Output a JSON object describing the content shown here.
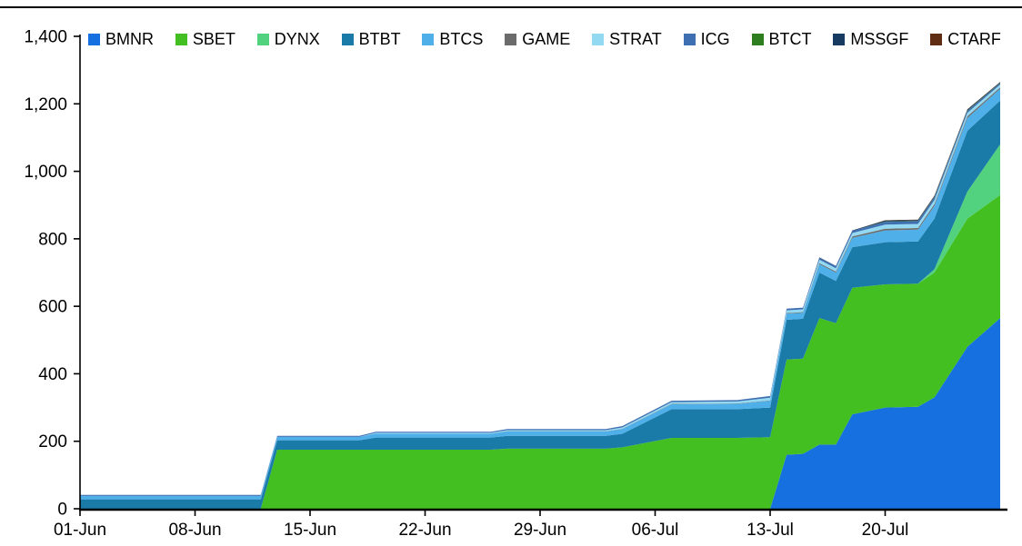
{
  "chart_data": {
    "type": "area",
    "stacked": true,
    "title": "",
    "grid": false,
    "legend_position": "top",
    "x_unit": "days since 01-Jun",
    "x_domain": [
      0,
      56
    ],
    "y_domain": [
      0,
      1400
    ],
    "x_ticks": [
      {
        "x": 0,
        "label": "01-Jun"
      },
      {
        "x": 7,
        "label": "08-Jun"
      },
      {
        "x": 14,
        "label": "15-Jun"
      },
      {
        "x": 21,
        "label": "22-Jun"
      },
      {
        "x": 28,
        "label": "29-Jun"
      },
      {
        "x": 35,
        "label": "06-Jul"
      },
      {
        "x": 42,
        "label": "13-Jul"
      },
      {
        "x": 49,
        "label": "20-Jul"
      }
    ],
    "y_ticks": [
      {
        "v": 0,
        "label": "0"
      },
      {
        "v": 200,
        "label": "200"
      },
      {
        "v": 400,
        "label": "400"
      },
      {
        "v": 600,
        "label": "600"
      },
      {
        "v": 800,
        "label": "800"
      },
      {
        "v": 1000,
        "label": "1,000"
      },
      {
        "v": 1200,
        "label": "1,200"
      },
      {
        "v": 1400,
        "label": "1,400"
      }
    ],
    "x": [
      0,
      11,
      12,
      17,
      18,
      25,
      26,
      32,
      33,
      36,
      40,
      42,
      43,
      44,
      45,
      46,
      47,
      49,
      51,
      52,
      54,
      56
    ],
    "series": [
      {
        "name": "BMNR",
        "color": "#1670E0",
        "values": [
          0,
          0,
          0,
          0,
          0,
          0,
          0,
          0,
          0,
          0,
          0,
          0,
          160,
          163,
          190,
          190,
          280,
          300,
          302,
          330,
          480,
          565
        ]
      },
      {
        "name": "SBET",
        "color": "#43BF21",
        "values": [
          0,
          0,
          175,
          175,
          175,
          175,
          178,
          178,
          182,
          210,
          210,
          212,
          282,
          282,
          375,
          360,
          375,
          365,
          365,
          370,
          380,
          365
        ]
      },
      {
        "name": "DYNX",
        "color": "#52D17E",
        "values": [
          0,
          0,
          0,
          0,
          0,
          0,
          0,
          0,
          0,
          0,
          0,
          0,
          0,
          0,
          0,
          0,
          0,
          0,
          0,
          10,
          80,
          150
        ]
      },
      {
        "name": "BTBT",
        "color": "#1B7BA8",
        "values": [
          28,
          28,
          28,
          28,
          36,
          36,
          38,
          38,
          40,
          85,
          85,
          88,
          118,
          118,
          135,
          125,
          120,
          125,
          125,
          150,
          180,
          130
        ]
      },
      {
        "name": "BTCS",
        "color": "#4FAFE8",
        "values": [
          10,
          10,
          10,
          10,
          12,
          12,
          13,
          13,
          14,
          15,
          16,
          20,
          18,
          18,
          25,
          25,
          28,
          35,
          35,
          38,
          38,
          35
        ]
      },
      {
        "name": "GAME",
        "color": "#6B6B6B",
        "values": [
          0,
          0,
          0,
          0,
          0,
          0,
          1,
          1,
          1,
          1,
          1,
          1,
          2,
          2,
          3,
          3,
          4,
          5,
          5,
          5,
          5,
          4
        ]
      },
      {
        "name": "STRAT",
        "color": "#93D9F2",
        "values": [
          0,
          0,
          0,
          0,
          2,
          2,
          3,
          3,
          4,
          5,
          6,
          8,
          8,
          8,
          10,
          10,
          10,
          12,
          12,
          12,
          10,
          8
        ]
      },
      {
        "name": "ICG",
        "color": "#3E6FB2",
        "values": [
          3,
          3,
          3,
          3,
          3,
          3,
          3,
          3,
          4,
          4,
          4,
          5,
          5,
          5,
          6,
          6,
          6,
          8,
          8,
          8,
          6,
          4
        ]
      },
      {
        "name": "BTCT",
        "color": "#2E7D1E",
        "values": [
          0,
          0,
          0,
          0,
          0,
          0,
          0,
          0,
          0,
          0,
          0,
          0,
          0,
          0,
          0,
          0,
          0,
          1,
          1,
          1,
          1,
          1
        ]
      },
      {
        "name": "MSSGF",
        "color": "#173B60",
        "values": [
          0,
          0,
          0,
          0,
          0,
          0,
          0,
          0,
          0,
          0,
          0,
          0,
          0,
          0,
          1,
          1,
          2,
          3,
          3,
          3,
          3,
          2
        ]
      },
      {
        "name": "CTARF",
        "color": "#5F2D14",
        "values": [
          0,
          0,
          0,
          0,
          0,
          0,
          0,
          0,
          0,
          0,
          0,
          0,
          0,
          0,
          0,
          0,
          0,
          1,
          1,
          1,
          1,
          1
        ]
      }
    ]
  }
}
